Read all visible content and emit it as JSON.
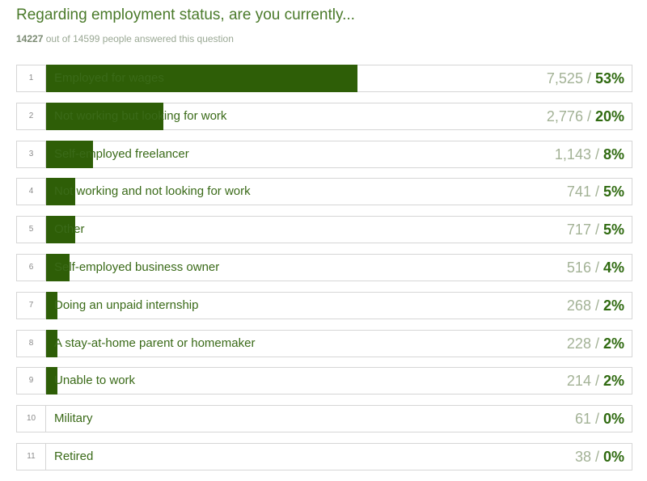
{
  "question": {
    "title": "Regarding employment status, are you currently...",
    "answered_count": "14227",
    "answered_suffix": "out of 14599 people answered this question"
  },
  "colors": {
    "bar": "#2e5e07",
    "title": "#4a7a2a",
    "count": "#a3b296",
    "percent": "#2f6a10"
  },
  "chart_data": {
    "type": "bar",
    "orientation": "horizontal",
    "title": "Regarding employment status, are you currently...",
    "xlim": [
      0,
      100
    ],
    "grid": false,
    "rows": [
      {
        "rank": "1",
        "label": "Employed for wages",
        "count": "7,525",
        "percent_text": "53%",
        "percent": 53
      },
      {
        "rank": "2",
        "label": "Not working but looking for work",
        "count": "2,776",
        "percent_text": "20%",
        "percent": 20
      },
      {
        "rank": "3",
        "label": "Self-employed freelancer",
        "count": "1,143",
        "percent_text": "8%",
        "percent": 8
      },
      {
        "rank": "4",
        "label": "Not working and not looking for work",
        "count": "741",
        "percent_text": "5%",
        "percent": 5
      },
      {
        "rank": "5",
        "label": "Other",
        "count": "717",
        "percent_text": "5%",
        "percent": 5
      },
      {
        "rank": "6",
        "label": "Self-employed business owner",
        "count": "516",
        "percent_text": "4%",
        "percent": 4
      },
      {
        "rank": "7",
        "label": "Doing an unpaid internship",
        "count": "268",
        "percent_text": "2%",
        "percent": 2
      },
      {
        "rank": "8",
        "label": "A stay-at-home parent or homemaker",
        "count": "228",
        "percent_text": "2%",
        "percent": 2
      },
      {
        "rank": "9",
        "label": "Unable to work",
        "count": "214",
        "percent_text": "2%",
        "percent": 2
      },
      {
        "rank": "10",
        "label": "Military",
        "count": "61",
        "percent_text": "0%",
        "percent": 0
      },
      {
        "rank": "11",
        "label": "Retired",
        "count": "38",
        "percent_text": "0%",
        "percent": 0
      }
    ]
  }
}
